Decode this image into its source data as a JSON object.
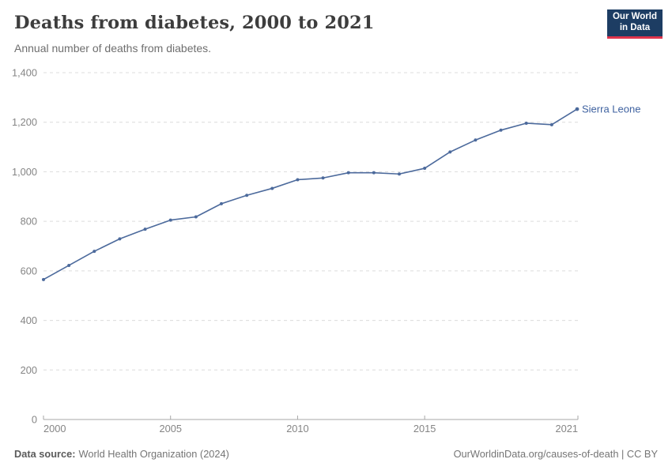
{
  "header": {
    "title": "Deaths from diabetes, 2000 to 2021",
    "subtitle": "Annual number of deaths from diabetes.",
    "logo": {
      "line1": "Our World",
      "line2": "in Data"
    }
  },
  "footer": {
    "datasource_label": "Data source:",
    "datasource_value": "World Health Organization (2024)",
    "link": "OurWorldinData.org/causes-of-death | CC BY"
  },
  "chart_data": {
    "type": "line",
    "title": "Deaths from diabetes, 2000 to 2021",
    "subtitle": "Annual number of deaths from diabetes.",
    "xlabel": "",
    "ylabel": "",
    "xlim": [
      2000,
      2021
    ],
    "ylim": [
      0,
      1400
    ],
    "xticks": [
      2000,
      2005,
      2010,
      2015,
      2021
    ],
    "yticks": [
      0,
      200,
      400,
      600,
      800,
      1000,
      1200,
      1400
    ],
    "grid": "horizontal-dashed",
    "legend_position": "end-of-line-label",
    "series": [
      {
        "name": "Sierra Leone",
        "x": [
          2000,
          2001,
          2002,
          2003,
          2004,
          2005,
          2006,
          2007,
          2008,
          2009,
          2010,
          2011,
          2012,
          2013,
          2014,
          2015,
          2016,
          2017,
          2018,
          2019,
          2020,
          2021
        ],
        "values": [
          565,
          622,
          679,
          729,
          768,
          805,
          818,
          871,
          905,
          933,
          968,
          975,
          996,
          996,
          991,
          1014,
          1080,
          1128,
          1168,
          1196,
          1190,
          1253
        ]
      }
    ],
    "colors": {
      "line": "#4c6a9c",
      "entity_label": "#3f62a0",
      "grid": "#dcdcdc",
      "axis": "#a7a7a7",
      "tick_label": "#858585"
    }
  },
  "colors": {
    "logo_bg": "#1d3d63",
    "logo_accent": "#e0344c",
    "title": "#3d3d3d",
    "subtitle": "#6e6e6e"
  }
}
